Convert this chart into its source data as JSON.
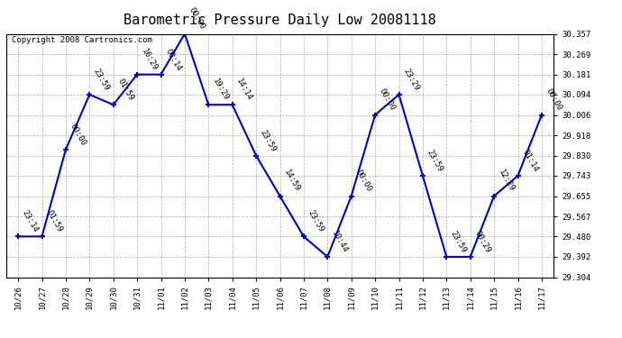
{
  "title": "Barometric Pressure Daily Low 20081118",
  "copyright": "Copyright 2008 Cartronics.com",
  "x_labels": [
    "10/26",
    "10/27",
    "10/28",
    "10/29",
    "10/30",
    "10/31",
    "11/01",
    "11/02",
    "11/03",
    "11/04",
    "11/05",
    "11/06",
    "11/07",
    "11/08",
    "11/09",
    "11/10",
    "11/11",
    "11/12",
    "11/13",
    "11/14",
    "11/15",
    "11/16",
    "11/17"
  ],
  "y_values": [
    29.48,
    29.48,
    29.856,
    30.094,
    30.05,
    30.181,
    30.181,
    30.357,
    30.05,
    30.05,
    29.83,
    29.655,
    29.48,
    29.392,
    29.655,
    30.006,
    30.094,
    29.743,
    29.392,
    29.392,
    29.655,
    29.743,
    30.006
  ],
  "point_labels": [
    "23:14",
    "01:59",
    "00:00",
    "23:59",
    "01:59",
    "16:29",
    "00:14",
    "00:00",
    "19:29",
    "14:14",
    "23:59",
    "14:59",
    "23:59",
    "10:44",
    "00:00",
    "00:00",
    "23:29",
    "23:59",
    "23:59",
    "00:29",
    "12:29",
    "01:14",
    "00:00"
  ],
  "ylim_min": 29.304,
  "ylim_max": 30.357,
  "yticks": [
    29.304,
    29.392,
    29.48,
    29.567,
    29.655,
    29.743,
    29.83,
    29.918,
    30.006,
    30.094,
    30.181,
    30.269,
    30.357
  ],
  "line_color": "#0000CC",
  "bg_color": "#ffffff",
  "grid_color": "#aaaaaa",
  "title_fontsize": 11,
  "label_fontsize": 6.5,
  "tick_fontsize": 6.5,
  "copyright_fontsize": 6.5
}
